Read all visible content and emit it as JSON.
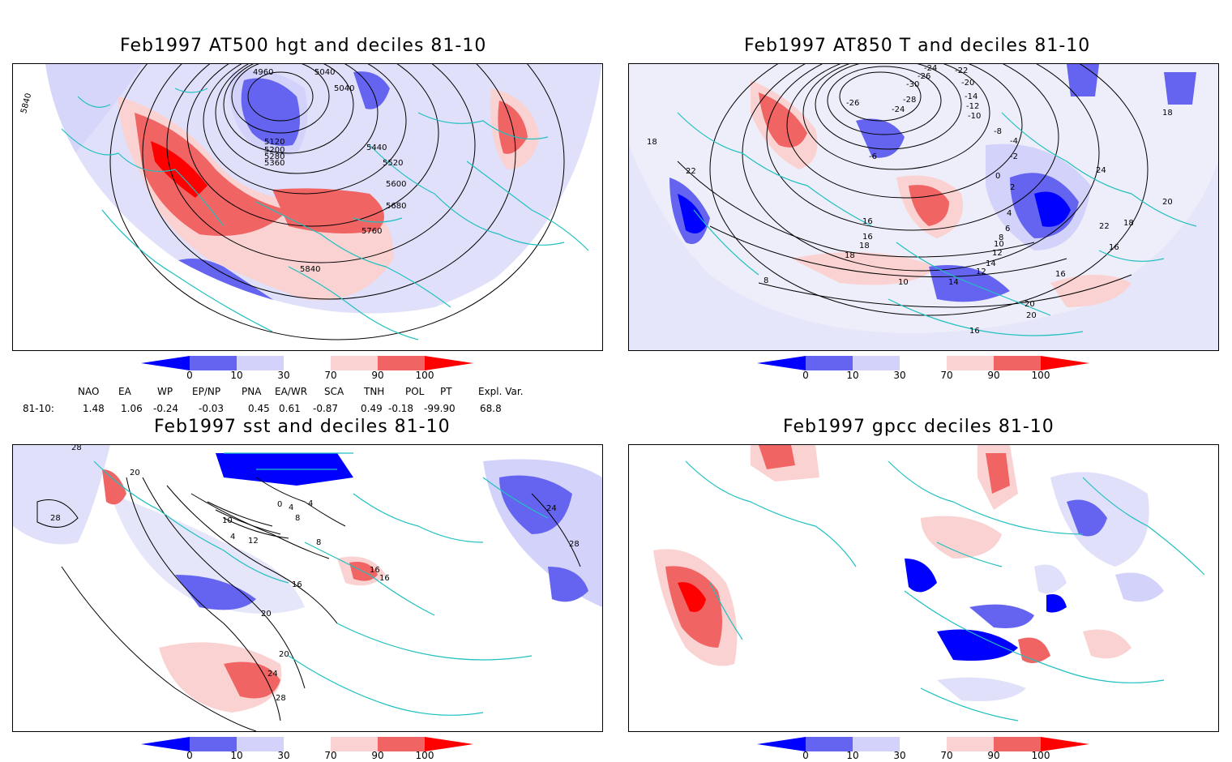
{
  "panels": [
    {
      "id": "p1",
      "title": "Feb1997 AT500 hgt and deciles 81-10",
      "contour_labels": [
        "5840",
        "4960",
        "5040",
        "5040",
        "5120",
        "5200",
        "5280",
        "5360",
        "5440",
        "5520",
        "5600",
        "5680",
        "5760",
        "5840"
      ]
    },
    {
      "id": "p2",
      "title": "Feb1997 AT850 T and deciles 81-10",
      "contour_labels": [
        "-24",
        "-22",
        "-26",
        "-20",
        "-30",
        "-28",
        "-26",
        "-24",
        "-14",
        "-12",
        "-10",
        "-8",
        "-6",
        "-4",
        "-2",
        "0",
        "2",
        "4",
        "6",
        "8",
        "10",
        "12",
        "14",
        "16",
        "18",
        "20",
        "22",
        "24",
        "16",
        "16",
        "18",
        "18",
        "8",
        "10",
        "12",
        "14",
        "16",
        "20",
        "16",
        "18",
        "22",
        "20",
        "18"
      ]
    },
    {
      "id": "p3",
      "title": "Feb1997 sst and deciles 81-10",
      "contour_labels": [
        "28",
        "28",
        "20",
        "10",
        "4",
        "0",
        "4",
        "8",
        "12",
        "4",
        "8",
        "16",
        "16",
        "16",
        "20",
        "20",
        "24",
        "28",
        "24",
        "28"
      ]
    },
    {
      "id": "p4",
      "title": "Feb1997 gpcc deciles 81-10",
      "contour_labels": []
    }
  ],
  "colorbar": {
    "ticks": [
      "0",
      "10",
      "30",
      "70",
      "90",
      "100"
    ],
    "colors": {
      "dark_blue": "#0000ff",
      "mid_blue": "#6464f0",
      "light_blue": "#d2d2fa",
      "white": "#ffffff",
      "light_red": "#fad2d2",
      "mid_red": "#f06464",
      "dark_red": "#ff0000"
    }
  },
  "indices": {
    "headers": [
      "NAO",
      "EA",
      "WP",
      "EP/NP",
      "PNA",
      "EA/WR",
      "SCA",
      "TNH",
      "POL",
      "PT",
      "Expl. Var."
    ],
    "row_label": "81-10:",
    "values": [
      "1.48",
      "1.06",
      "-0.24",
      "-0.03",
      "0.45",
      "0.61",
      "-0.87",
      "0.49",
      "-0.18",
      "-99.90",
      "68.8"
    ]
  },
  "colors": {
    "coastline": "#20c0c0",
    "contour": "#000000",
    "frame": "#000000"
  }
}
